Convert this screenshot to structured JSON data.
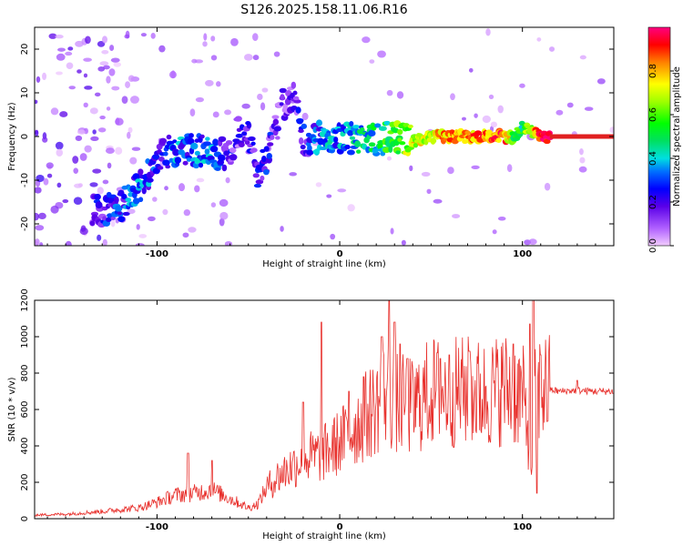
{
  "title": "S126.2025.158.11.06.R16",
  "colors": {
    "snr_line": "#e8302c",
    "frame": "#000000",
    "spectral_ridge": "#e02020"
  },
  "chart_data": [
    {
      "type": "heatmap",
      "name": "spectrogram",
      "xlabel": "Height of straight line (km)",
      "ylabel": "Frequency (Hz)",
      "xlim": [
        -167,
        150
      ],
      "ylim": [
        -25,
        25
      ],
      "xticks": [
        -100,
        0,
        100
      ],
      "yticks": [
        -20,
        -10,
        0,
        10,
        20
      ],
      "colorbar": {
        "label": "Normalized spectral amplitude",
        "range": [
          0,
          1
        ],
        "ticks": [
          0.0,
          0.2,
          0.4,
          0.6,
          0.8
        ]
      },
      "ridge": {
        "x": [
          -130,
          -120,
          -110,
          -100,
          -90,
          -80,
          -70,
          -60,
          -55,
          -50,
          -45,
          -40,
          -35,
          -30,
          -25,
          -20,
          -10,
          0,
          10,
          20,
          30,
          40,
          50,
          60,
          70,
          80,
          90,
          95,
          100,
          105,
          110,
          120,
          130,
          140,
          150
        ],
        "freq": [
          -17,
          -16,
          -12,
          -5,
          -3,
          -3,
          -4,
          -4,
          2,
          0,
          -8,
          -5,
          2,
          8,
          10,
          -1,
          0,
          -1,
          0,
          -1,
          0,
          -1,
          0,
          0,
          0,
          0,
          0,
          -0.5,
          2,
          1,
          0,
          0,
          0,
          0,
          0
        ],
        "amplitude": [
          0.2,
          0.25,
          0.3,
          0.25,
          0.3,
          0.3,
          0.3,
          0.2,
          0.15,
          0.15,
          0.2,
          0.2,
          0.15,
          0.1,
          0.1,
          0.2,
          0.3,
          0.35,
          0.4,
          0.45,
          0.55,
          0.7,
          0.75,
          0.8,
          0.8,
          0.85,
          0.85,
          0.6,
          0.5,
          0.7,
          0.9,
          0.95,
          0.95,
          0.95,
          0.95
        ]
      }
    },
    {
      "type": "line",
      "name": "snr",
      "xlabel": "Height of straight line (km)",
      "ylabel": "SNR (10 * v/v)",
      "xlim": [
        -167,
        150
      ],
      "ylim": [
        0,
        1200
      ],
      "xticks": [
        -100,
        0,
        100
      ],
      "yticks": [
        0,
        200,
        400,
        600,
        800,
        1000,
        1200
      ],
      "series": [
        {
          "name": "SNR",
          "x": [
            -167,
            -150,
            -130,
            -110,
            -100,
            -90,
            -80,
            -70,
            -60,
            -50,
            -45,
            -40,
            -35,
            -30,
            -20,
            -10,
            0,
            10,
            20,
            25,
            30,
            40,
            50,
            60,
            70,
            80,
            90,
            100,
            103,
            105,
            107,
            110,
            115,
            120,
            130,
            140,
            150
          ],
          "values": [
            20,
            25,
            40,
            60,
            90,
            130,
            140,
            160,
            110,
            60,
            80,
            170,
            220,
            260,
            330,
            350,
            420,
            520,
            620,
            700,
            640,
            610,
            700,
            690,
            700,
            680,
            720,
            680,
            500,
            300,
            650,
            720,
            710,
            700,
            705,
            700,
            700
          ],
          "spikes": {
            "x": [
              -83,
              -70,
              -20,
              -10,
              5,
              13,
              23,
              27,
              30,
              33,
              37,
              55,
              60,
              71,
              95,
              104,
              106,
              108,
              110,
              130
            ],
            "values": [
              360,
              320,
              640,
              1080,
              700,
              780,
              1000,
              1220,
              1080,
              960,
              880,
              880,
              900,
              920,
              960,
              1070,
              1220,
              140,
              900,
              760
            ]
          }
        }
      ]
    }
  ]
}
